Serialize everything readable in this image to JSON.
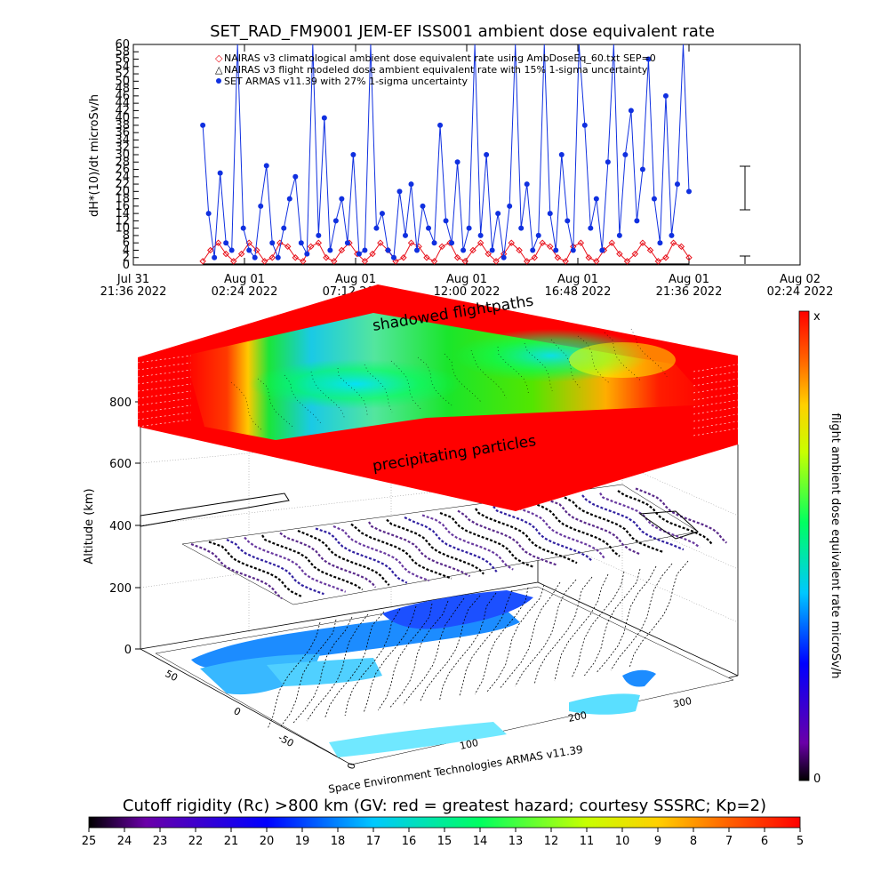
{
  "chart_data": [
    {
      "type": "line",
      "title": "SET_RAD_FM9001  JEM-EF ISS001 ambient dose equivalent rate",
      "ylabel": "dH*(10)/dt microSv/h",
      "xlabel": "",
      "ylim": [
        0,
        60
      ],
      "y_ticks": [
        "0",
        "2",
        "4",
        "6",
        "8",
        "10",
        "12",
        "14",
        "16",
        "18",
        "20",
        "22",
        "24",
        "26",
        "28",
        "30",
        "32",
        "34",
        "36",
        "38",
        "40",
        "42",
        "44",
        "46",
        "48",
        "50",
        "52",
        "54",
        "56",
        "58",
        "60"
      ],
      "x_ticks": [
        {
          "line1": "Jul 31",
          "line2": "21:36 2022"
        },
        {
          "line1": "Aug 01",
          "line2": "02:24 2022"
        },
        {
          "line1": "Aug 01",
          "line2": "07:12 2022"
        },
        {
          "line1": "Aug 01",
          "line2": "12:00 2022"
        },
        {
          "line1": "Aug 01",
          "line2": "16:48 2022"
        },
        {
          "line1": "Aug 01",
          "line2": "21:36 2022"
        },
        {
          "line1": "Aug 02",
          "line2": "02:24 2022"
        }
      ],
      "grid": false,
      "legend_position": "top-left",
      "series": [
        {
          "name": "NAIRAS v3 climatological ambient dose equivalent rate using AmbDoseEq_60.txt SEP=0",
          "marker": "diamond",
          "color": "#e8101a",
          "x_hours": [
            0.0,
            0.33,
            0.67,
            1.0,
            1.33,
            1.67,
            2.0,
            2.33,
            2.67,
            3.0,
            3.33,
            3.67,
            4.0,
            4.33,
            4.67,
            5.0,
            5.33,
            5.67,
            6.0,
            6.33,
            6.67,
            7.0,
            7.33,
            7.67,
            8.0,
            8.33,
            8.67,
            9.0,
            9.33,
            9.67,
            10.0,
            10.33,
            10.67,
            11.0,
            11.33,
            11.67,
            12.0,
            12.33,
            12.67,
            13.0,
            13.33,
            13.67,
            14.0,
            14.33,
            14.67,
            15.0,
            15.33,
            15.67,
            16.0,
            16.33,
            16.67,
            17.0,
            17.33,
            17.67,
            18.0,
            18.33,
            18.67,
            19.0,
            19.33,
            19.67,
            20.0,
            20.33,
            20.67,
            21.0
          ],
          "values": [
            1,
            4,
            6,
            3,
            1,
            3,
            6,
            4,
            1,
            2,
            6,
            5,
            2,
            1,
            5,
            6,
            2,
            1,
            4,
            6,
            3,
            1,
            3,
            6,
            4,
            1,
            2,
            6,
            5,
            2,
            1,
            5,
            6,
            2,
            1,
            4,
            6,
            3,
            1,
            3,
            6,
            4,
            1,
            2,
            6,
            5,
            2,
            1,
            5,
            6,
            2,
            1,
            4,
            6,
            3,
            1,
            3,
            6,
            4,
            1,
            2,
            6,
            5,
            2
          ]
        },
        {
          "name": "NAIRAS v3 flight modeled dose ambient equivalent rate with 15% 1-sigma uncertainty",
          "marker": "triangle",
          "color": "#000000",
          "x_hours": [
            0.0,
            21.0
          ],
          "values": [
            0.2,
            0.2
          ]
        },
        {
          "name": "SET ARMAS v11.39 with 27% 1-sigma uncertainty",
          "marker": "circle",
          "color": "#1030e0",
          "x_hours": [
            0.0,
            0.25,
            0.5,
            0.75,
            1.0,
            1.25,
            1.5,
            1.75,
            2.0,
            2.25,
            2.5,
            2.75,
            3.0,
            3.25,
            3.5,
            3.75,
            4.0,
            4.25,
            4.5,
            4.75,
            5.0,
            5.25,
            5.5,
            5.75,
            6.0,
            6.25,
            6.5,
            6.75,
            7.0,
            7.25,
            7.5,
            7.75,
            8.0,
            8.25,
            8.5,
            8.75,
            9.0,
            9.25,
            9.5,
            9.75,
            10.0,
            10.25,
            10.5,
            10.75,
            11.0,
            11.25,
            11.5,
            11.75,
            12.0,
            12.25,
            12.5,
            12.75,
            13.0,
            13.25,
            13.5,
            13.75,
            14.0,
            14.25,
            14.5,
            14.75,
            15.0,
            15.25,
            15.5,
            15.75,
            16.0,
            16.25,
            16.5,
            16.75,
            17.0,
            17.25,
            17.5,
            17.75,
            18.0,
            18.25,
            18.5,
            18.75,
            19.0,
            19.25,
            19.5,
            19.75,
            20.0,
            20.25,
            20.5,
            20.75,
            21.0
          ],
          "values": [
            38,
            14,
            2,
            25,
            6,
            4,
            60,
            10,
            4,
            2,
            16,
            27,
            6,
            2,
            10,
            18,
            24,
            6,
            3,
            60,
            8,
            40,
            4,
            12,
            18,
            6,
            30,
            3,
            4,
            60,
            10,
            14,
            4,
            2,
            20,
            8,
            22,
            4,
            16,
            10,
            6,
            38,
            12,
            6,
            28,
            4,
            10,
            60,
            8,
            30,
            4,
            14,
            2,
            16,
            60,
            10,
            22,
            4,
            8,
            60,
            14,
            4,
            30,
            12,
            4,
            60,
            38,
            10,
            18,
            4,
            28,
            60,
            8,
            30,
            42,
            12,
            26,
            56,
            18,
            6,
            46,
            8,
            22,
            60,
            20
          ]
        }
      ]
    },
    {
      "type": "scatter",
      "title": "",
      "zlabel": "Altitude (km)",
      "z_ticks": [
        "0",
        "200",
        "400",
        "600",
        "800"
      ],
      "x_ticks": [
        "0",
        "100",
        "200",
        "300"
      ],
      "y_ticks": [
        "-50",
        "0",
        "50"
      ],
      "annotations": [
        "shadowed flightpaths",
        "precipitating particles",
        "Space Environment Technologies ARMAS v11.39"
      ],
      "colorbar_right": {
        "label": "flight ambient dose equivalent rate microSv/h",
        "top": "x",
        "bottom": "0"
      }
    },
    {
      "type": "heatmap",
      "title": "Cutoff rigidity (Rc) >800 km (GV: red = greatest hazard; courtesy SSSRC; Kp=2)",
      "colorbar_ticks": [
        "25",
        "24",
        "23",
        "22",
        "21",
        "20",
        "19",
        "18",
        "17",
        "16",
        "15",
        "14",
        "13",
        "12",
        "11",
        "10",
        "9",
        "8",
        "7",
        "6",
        "5"
      ]
    }
  ],
  "colors": {
    "red": "#ff0000",
    "blue": "#1030e0",
    "cyan": "#00e0ff",
    "green": "#00ff00",
    "yellow": "#ffff00",
    "black": "#000000"
  }
}
